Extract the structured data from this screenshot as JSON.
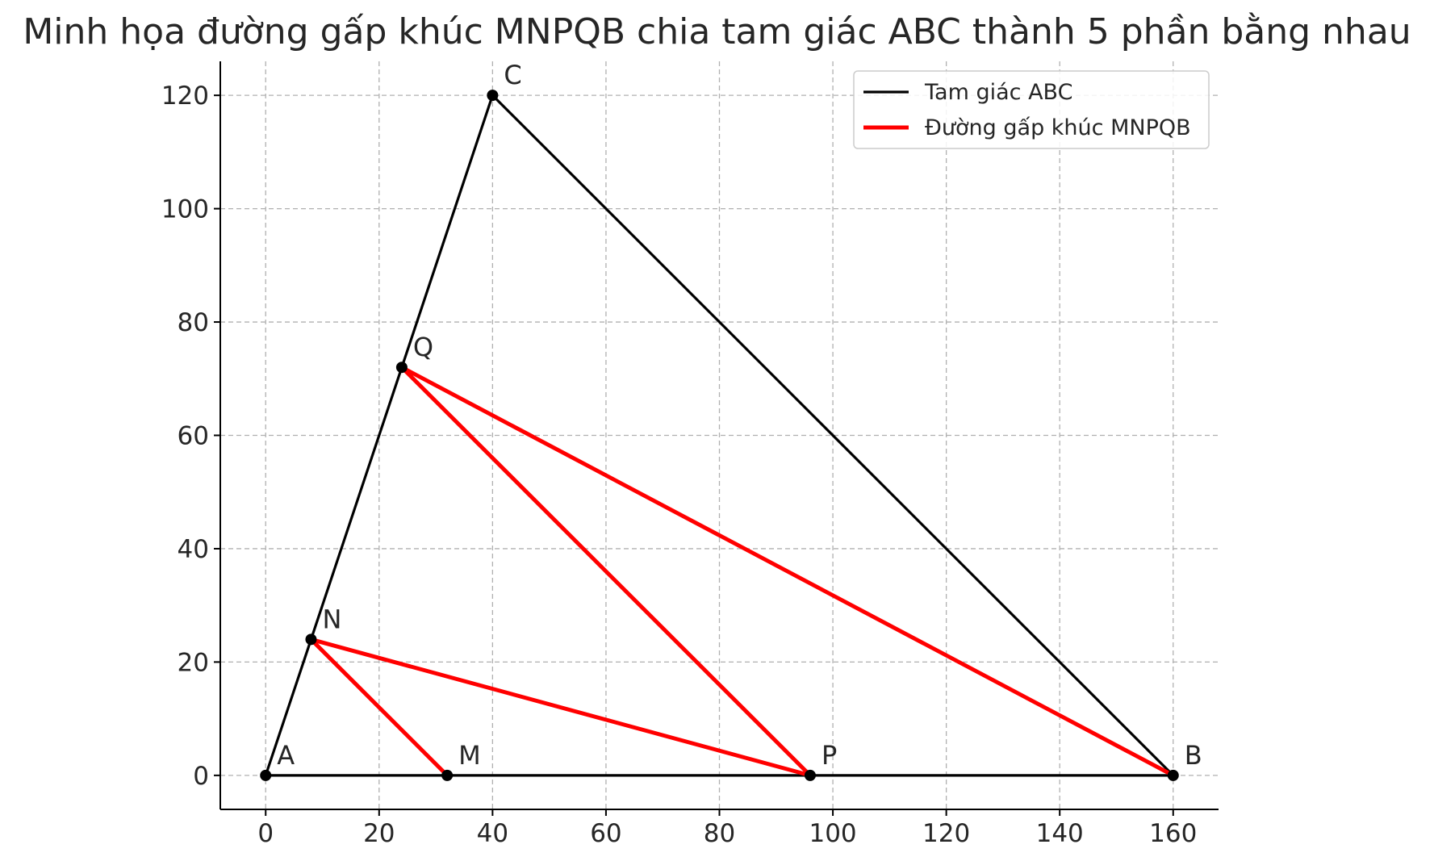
{
  "chart_data": {
    "type": "line",
    "title": "Minh họa đường gấp khúc MNPQB chia tam giác ABC thành 5 phần bằng nhau",
    "xlabel": "",
    "ylabel": "",
    "xlim": [
      -8,
      168
    ],
    "ylim": [
      -6,
      126
    ],
    "x_ticks": [
      0,
      20,
      40,
      60,
      80,
      100,
      120,
      140,
      160
    ],
    "y_ticks": [
      0,
      20,
      40,
      60,
      80,
      100,
      120
    ],
    "grid": true,
    "legend_position": "top-right",
    "points": [
      {
        "label": "A",
        "x": 0,
        "y": 0
      },
      {
        "label": "B",
        "x": 160,
        "y": 0
      },
      {
        "label": "C",
        "x": 40,
        "y": 120
      },
      {
        "label": "M",
        "x": 32,
        "y": 0
      },
      {
        "label": "N",
        "x": 8,
        "y": 24
      },
      {
        "label": "P",
        "x": 96,
        "y": 0
      },
      {
        "label": "Q",
        "x": 24,
        "y": 72
      }
    ],
    "series": [
      {
        "name": "Tam giác ABC",
        "color": "#000000",
        "x": [
          0,
          160,
          40,
          0
        ],
        "y": [
          0,
          0,
          120,
          0
        ]
      },
      {
        "name": "Đường gấp khúc MNPQB",
        "color": "#ff0000",
        "x": [
          32,
          8,
          96,
          24,
          160
        ],
        "y": [
          0,
          24,
          0,
          72,
          0
        ]
      }
    ]
  }
}
